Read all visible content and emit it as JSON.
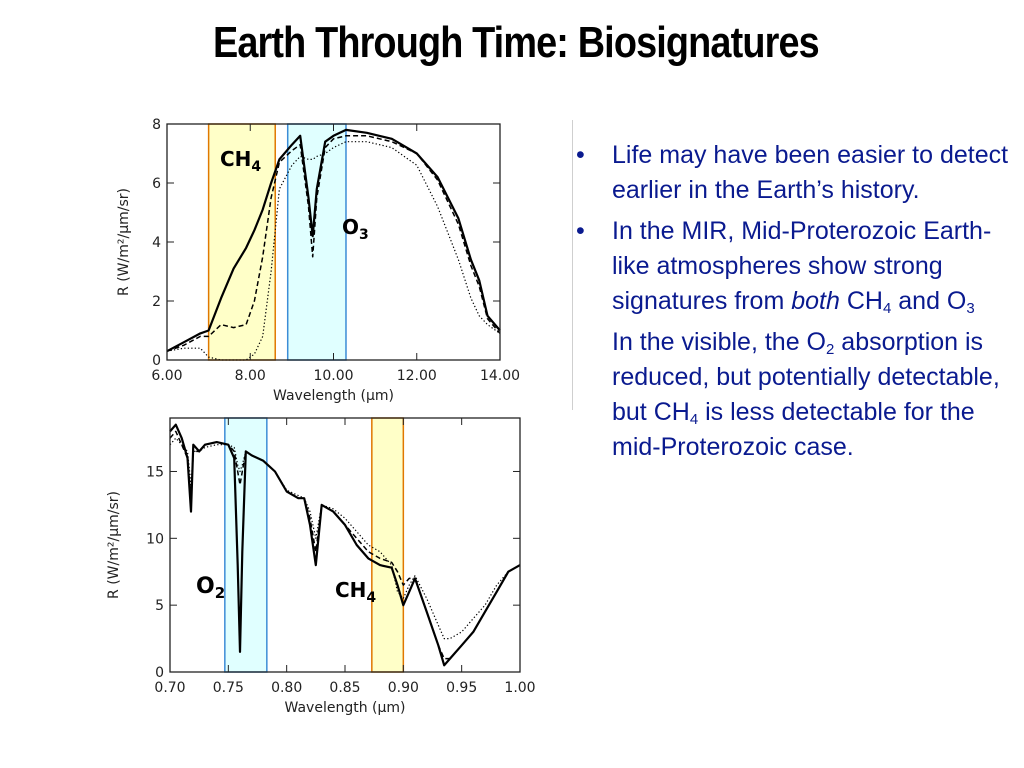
{
  "title": "Earth Through Time: Biosignatures",
  "charts": [
    {
      "id": "mir",
      "xlabel": "Wavelength (μm)",
      "ylabel": "R (W/m²/μm/sr)",
      "xlim": [
        6.0,
        14.0
      ],
      "ylim": [
        0,
        8
      ],
      "xticks": [
        "6.00",
        "8.00",
        "10.00",
        "12.00",
        "14.00"
      ],
      "yticks": [
        "0",
        "2",
        "4",
        "6",
        "8"
      ],
      "bands": [
        {
          "molecule": "CH",
          "sub": "4",
          "range": [
            7.0,
            8.6
          ],
          "fill": "#ffffc8",
          "stroke": "#e07800"
        },
        {
          "molecule": "O",
          "sub": "3",
          "range": [
            8.9,
            10.3
          ],
          "fill": "#e0ffff",
          "stroke": "#3c8cd6"
        }
      ],
      "chart_data": {
        "type": "line",
        "series": [
          {
            "style": "solid",
            "x": [
              6.0,
              6.4,
              6.8,
              7.0,
              7.3,
              7.6,
              7.9,
              8.1,
              8.3,
              8.5,
              8.7,
              9.0,
              9.2,
              9.4,
              9.5,
              9.6,
              9.8,
              10.0,
              10.3,
              10.8,
              11.4,
              12.0,
              12.5,
              13.0,
              13.3,
              13.5,
              13.7,
              14.0
            ],
            "y": [
              0.3,
              0.6,
              0.9,
              1.0,
              2.1,
              3.1,
              3.8,
              4.4,
              5.1,
              6.0,
              6.8,
              7.3,
              7.6,
              5.5,
              4.2,
              5.8,
              7.4,
              7.6,
              7.8,
              7.7,
              7.5,
              7.0,
              6.2,
              4.8,
              3.4,
              2.7,
              1.5,
              1.0
            ]
          },
          {
            "style": "dashed",
            "x": [
              6.0,
              6.4,
              6.8,
              7.0,
              7.3,
              7.6,
              7.9,
              8.1,
              8.3,
              8.5,
              8.7,
              9.0,
              9.2,
              9.4,
              9.5,
              9.6,
              9.8,
              10.0,
              10.3,
              10.8,
              11.4,
              12.0,
              12.5,
              13.0,
              13.3,
              13.5,
              13.7,
              14.0
            ],
            "y": [
              0.3,
              0.5,
              0.8,
              0.8,
              1.2,
              1.1,
              1.2,
              2.0,
              3.5,
              5.5,
              6.7,
              7.1,
              7.3,
              5.2,
              3.5,
              5.5,
              7.2,
              7.5,
              7.6,
              7.6,
              7.4,
              7.0,
              6.1,
              4.6,
              3.2,
              2.5,
              1.4,
              0.9
            ]
          },
          {
            "style": "dotted",
            "x": [
              6.0,
              6.4,
              6.8,
              7.0,
              7.3,
              7.6,
              7.9,
              8.1,
              8.3,
              8.5,
              8.7,
              9.0,
              9.2,
              9.4,
              9.5,
              9.6,
              9.8,
              10.0,
              10.3,
              10.8,
              11.4,
              12.0,
              12.5,
              13.0,
              13.3,
              13.5,
              13.7,
              14.0
            ],
            "y": [
              0.3,
              0.4,
              0.4,
              0.1,
              0.0,
              0.0,
              0.0,
              0.2,
              0.8,
              3.0,
              5.8,
              6.6,
              6.9,
              6.8,
              6.8,
              6.9,
              7.0,
              7.2,
              7.4,
              7.4,
              7.2,
              6.6,
              5.2,
              3.4,
              2.1,
              1.5,
              1.2,
              0.9
            ]
          }
        ]
      }
    },
    {
      "id": "vis",
      "xlabel": "Wavelength (μm)",
      "ylabel": "R (W/m²/μm/sr)",
      "xlim": [
        0.7,
        1.0
      ],
      "ylim": [
        0,
        19
      ],
      "xticks": [
        "0.70",
        "0.75",
        "0.80",
        "0.85",
        "0.90",
        "0.95",
        "1.00"
      ],
      "yticks": [
        "0",
        "5",
        "10",
        "15"
      ],
      "bands": [
        {
          "molecule": "O",
          "sub": "2",
          "range": [
            0.747,
            0.783
          ],
          "fill": "#e0ffff",
          "stroke": "#3c8cd6"
        },
        {
          "molecule": "CH",
          "sub": "4",
          "range": [
            0.873,
            0.9
          ],
          "fill": "#ffffc8",
          "stroke": "#e07800"
        }
      ],
      "chart_data": {
        "type": "line",
        "series": [
          {
            "style": "solid",
            "x": [
              0.7,
              0.705,
              0.71,
              0.715,
              0.718,
              0.72,
              0.725,
              0.73,
              0.74,
              0.75,
              0.755,
              0.758,
              0.76,
              0.762,
              0.765,
              0.77,
              0.78,
              0.79,
              0.8,
              0.81,
              0.815,
              0.82,
              0.825,
              0.83,
              0.84,
              0.85,
              0.86,
              0.87,
              0.88,
              0.89,
              0.895,
              0.9,
              0.905,
              0.91,
              0.92,
              0.93,
              0.935,
              0.94,
              0.95,
              0.96,
              0.97,
              0.98,
              0.99,
              1.0
            ],
            "y": [
              18.0,
              18.5,
              17.5,
              16.0,
              12.0,
              17.0,
              16.5,
              17.0,
              17.2,
              17.0,
              16.0,
              8.0,
              1.5,
              9.0,
              16.5,
              16.2,
              15.8,
              15.0,
              13.5,
              13.0,
              13.0,
              11.0,
              8.0,
              12.5,
              12.0,
              11.0,
              9.5,
              8.5,
              8.0,
              7.8,
              6.5,
              5.0,
              6.0,
              7.0,
              4.5,
              2.0,
              0.5,
              1.0,
              2.0,
              3.0,
              4.5,
              6.0,
              7.5,
              8.0
            ]
          },
          {
            "style": "dashed",
            "x": [
              0.7,
              0.705,
              0.71,
              0.715,
              0.718,
              0.72,
              0.725,
              0.73,
              0.74,
              0.75,
              0.755,
              0.758,
              0.76,
              0.762,
              0.765,
              0.77,
              0.78,
              0.79,
              0.8,
              0.81,
              0.815,
              0.82,
              0.825,
              0.83,
              0.84,
              0.85,
              0.86,
              0.87,
              0.88,
              0.89,
              0.895,
              0.9,
              0.905,
              0.91,
              0.92,
              0.93,
              0.935,
              0.94,
              0.95,
              0.96,
              0.97,
              0.98,
              0.99,
              1.0
            ],
            "y": [
              17.5,
              18.0,
              17.0,
              16.0,
              13.0,
              16.5,
              16.5,
              17.0,
              17.2,
              17.0,
              16.5,
              15.0,
              14.0,
              15.0,
              16.5,
              16.2,
              15.8,
              15.0,
              13.5,
              13.0,
              13.0,
              11.5,
              9.0,
              12.5,
              12.0,
              11.0,
              10.0,
              9.0,
              8.5,
              8.2,
              7.5,
              6.5,
              7.0,
              7.0,
              4.5,
              2.0,
              1.0,
              1.0,
              2.0,
              3.0,
              4.5,
              6.0,
              7.5,
              8.0
            ]
          },
          {
            "style": "dotted",
            "x": [
              0.7,
              0.705,
              0.71,
              0.715,
              0.718,
              0.72,
              0.725,
              0.73,
              0.74,
              0.75,
              0.755,
              0.758,
              0.76,
              0.762,
              0.765,
              0.77,
              0.78,
              0.79,
              0.8,
              0.81,
              0.815,
              0.82,
              0.825,
              0.83,
              0.84,
              0.85,
              0.86,
              0.87,
              0.88,
              0.89,
              0.895,
              0.9,
              0.905,
              0.91,
              0.92,
              0.93,
              0.935,
              0.94,
              0.95,
              0.96,
              0.97,
              0.98,
              0.99,
              1.0
            ],
            "y": [
              17.0,
              17.5,
              17.0,
              16.5,
              14.0,
              16.5,
              16.5,
              16.8,
              17.0,
              17.0,
              16.8,
              15.5,
              15.0,
              15.5,
              16.5,
              16.2,
              15.8,
              15.0,
              13.6,
              13.2,
              13.0,
              12.0,
              10.0,
              12.5,
              12.2,
              11.5,
              10.5,
              9.5,
              9.0,
              8.0,
              6.0,
              5.5,
              6.5,
              7.2,
              5.5,
              3.5,
              2.5,
              2.5,
              3.0,
              4.0,
              5.0,
              6.5,
              7.5,
              8.0
            ]
          }
        ]
      }
    }
  ],
  "bullets": [
    {
      "marker": "•",
      "parts": [
        {
          "t": "Life may have been easier to detect earlier in the Earth’s history."
        }
      ]
    },
    {
      "marker": "•",
      "parts": [
        {
          "t": "In the MIR, Mid-Proterozoic Earth-like atmospheres show strong signatures from "
        },
        {
          "t": "both",
          "i": true
        },
        {
          "t": " CH"
        },
        {
          "t": "4",
          "sub": true
        },
        {
          "t": " and O"
        },
        {
          "t": "3",
          "sub": true
        }
      ]
    },
    {
      "marker": "",
      "parts": [
        {
          "t": "In the visible, the O"
        },
        {
          "t": "2",
          "sub": true
        },
        {
          "t": " absorption is reduced, but potentially detectable, but CH"
        },
        {
          "t": "4",
          "sub": true
        },
        {
          "t": " is less detectable for the mid-Proterozoic case."
        }
      ]
    }
  ]
}
